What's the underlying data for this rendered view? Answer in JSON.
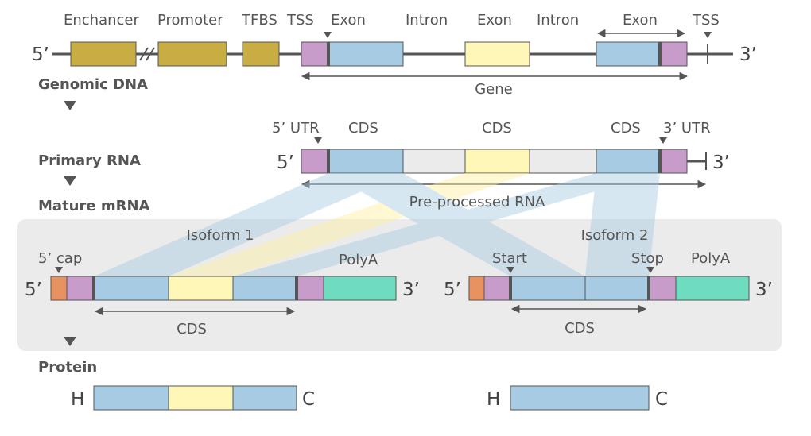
{
  "colors": {
    "regulatory": "#c8ad45",
    "utr": "#c79ccb",
    "exon": "#a6cbe3",
    "alt_exon": "#fff7b8",
    "intron": "#ebebeb",
    "cap": "#e89261",
    "polya": "#6fdcc0",
    "line": "#555555",
    "panel": "#ebebeb"
  },
  "genomic": {
    "labels": {
      "enhancer": "Enchancer",
      "promoter": "Promoter",
      "tfbs": "TFBS",
      "tss_start": "TSS",
      "exon1": "Exon",
      "intron1": "Intron",
      "exon2": "Exon",
      "intron2": "Intron",
      "exon3": "Exon",
      "tss_end": "TSS",
      "gene": "Gene"
    },
    "five_prime": "5’",
    "three_prime": "3’",
    "stage_label": "Genomic DNA"
  },
  "primary": {
    "labels": {
      "utr5": "5’ UTR",
      "cds1": "CDS",
      "cds2": "CDS",
      "cds3": "CDS",
      "utr3": "3’ UTR",
      "pre": "Pre-processed RNA"
    },
    "five_prime": "5’",
    "three_prime": "3’",
    "stage_label": "Primary RNA"
  },
  "mature": {
    "stage_label": "Mature mRNA",
    "isoform1": {
      "title": "Isoform 1",
      "cap": "5’ cap",
      "polya": "PolyA",
      "cds": "CDS",
      "five_prime": "5’",
      "three_prime": "3’"
    },
    "isoform2": {
      "title": "Isoform 2",
      "start": "Start",
      "stop": "Stop",
      "polya": "PolyA",
      "cds": "CDS",
      "five_prime": "5’",
      "three_prime": "3’"
    }
  },
  "protein": {
    "stage_label": "Protein",
    "p1": {
      "n_term": "H",
      "c_term": "C"
    },
    "p2": {
      "n_term": "H",
      "c_term": "C"
    }
  }
}
